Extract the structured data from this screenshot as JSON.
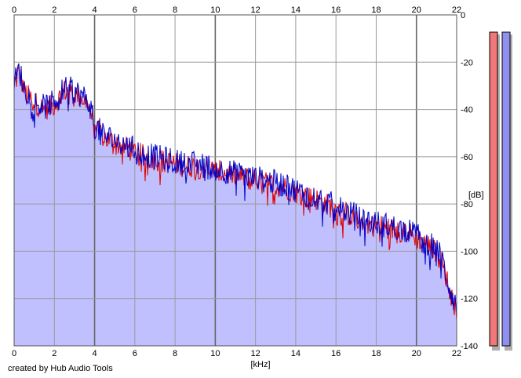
{
  "credit": "created by Hub Audio Tools",
  "colors": {
    "background": "#ffffff",
    "fill": "#c0c0ff",
    "channel_left": "#e00000",
    "channel_right": "#0000c8",
    "grid": "#9a9a9a",
    "grid_major": "#666666",
    "meter_left_fill": "#f07878",
    "meter_right_fill": "#9090ee",
    "meter_shadow": "#b0b0b0"
  },
  "chart_data": {
    "type": "area",
    "xlabel": "[kHz]",
    "ylabel": "[dB]",
    "xlim": [
      0,
      22
    ],
    "ylim": [
      -140,
      0
    ],
    "x_ticks": [
      "0",
      "2",
      "4",
      "6",
      "8",
      "10",
      "12",
      "14",
      "16",
      "18",
      "20",
      "22"
    ],
    "y_ticks": [
      "0",
      "-20",
      "-40",
      "-60",
      "-80",
      "-100",
      "-120",
      "-140"
    ],
    "y_tick_values": [
      0,
      -20,
      -40,
      -60,
      -80,
      -100,
      -120,
      -140
    ],
    "x_tick_values": [
      0,
      2,
      4,
      6,
      8,
      10,
      12,
      14,
      16,
      18,
      20,
      22
    ],
    "major_x_ticks": [
      4,
      10,
      20
    ],
    "grid": true,
    "x": [
      0.0,
      0.25,
      0.5,
      0.75,
      1.0,
      1.5,
      2.0,
      2.5,
      3.0,
      3.5,
      3.8,
      4.0,
      4.5,
      5.0,
      5.5,
      6.0,
      6.5,
      7.0,
      7.5,
      8.0,
      8.5,
      9.0,
      9.5,
      10.0,
      10.5,
      11.0,
      11.5,
      12.0,
      12.5,
      13.0,
      13.5,
      14.0,
      14.5,
      15.0,
      15.5,
      16.0,
      16.5,
      17.0,
      17.5,
      18.0,
      18.5,
      19.0,
      19.5,
      20.0,
      20.5,
      21.0,
      21.3,
      21.6,
      22.0
    ],
    "series": [
      {
        "values": [
          -30,
          -24,
          -32,
          -35,
          -37,
          -40,
          -38,
          -32,
          -33,
          -36,
          -40,
          -48,
          -52,
          -54,
          -56,
          -58,
          -60,
          -61,
          -62,
          -63,
          -64,
          -64,
          -65,
          -66,
          -67,
          -68,
          -69,
          -70,
          -71,
          -72,
          -73,
          -75,
          -77,
          -78,
          -80,
          -82,
          -84,
          -86,
          -88,
          -89,
          -90,
          -91,
          -92,
          -94,
          -97,
          -100,
          -105,
          -115,
          -125
        ]
      },
      {
        "values": [
          -29,
          -23,
          -31,
          -34,
          -37,
          -39,
          -37,
          -31,
          -32,
          -35,
          -39,
          -47,
          -51,
          -53,
          -55,
          -57,
          -59,
          -60,
          -61,
          -62,
          -63,
          -63,
          -64,
          -65,
          -66,
          -67,
          -68,
          -69,
          -70,
          -71,
          -72,
          -74,
          -76,
          -77,
          -79,
          -81,
          -83,
          -85,
          -87,
          -88,
          -89,
          -90,
          -91,
          -93,
          -96,
          -99,
          -104,
          -114,
          -124
        ]
      }
    ],
    "meters": {
      "left_level_db": 0,
      "right_level_db": 0
    }
  }
}
